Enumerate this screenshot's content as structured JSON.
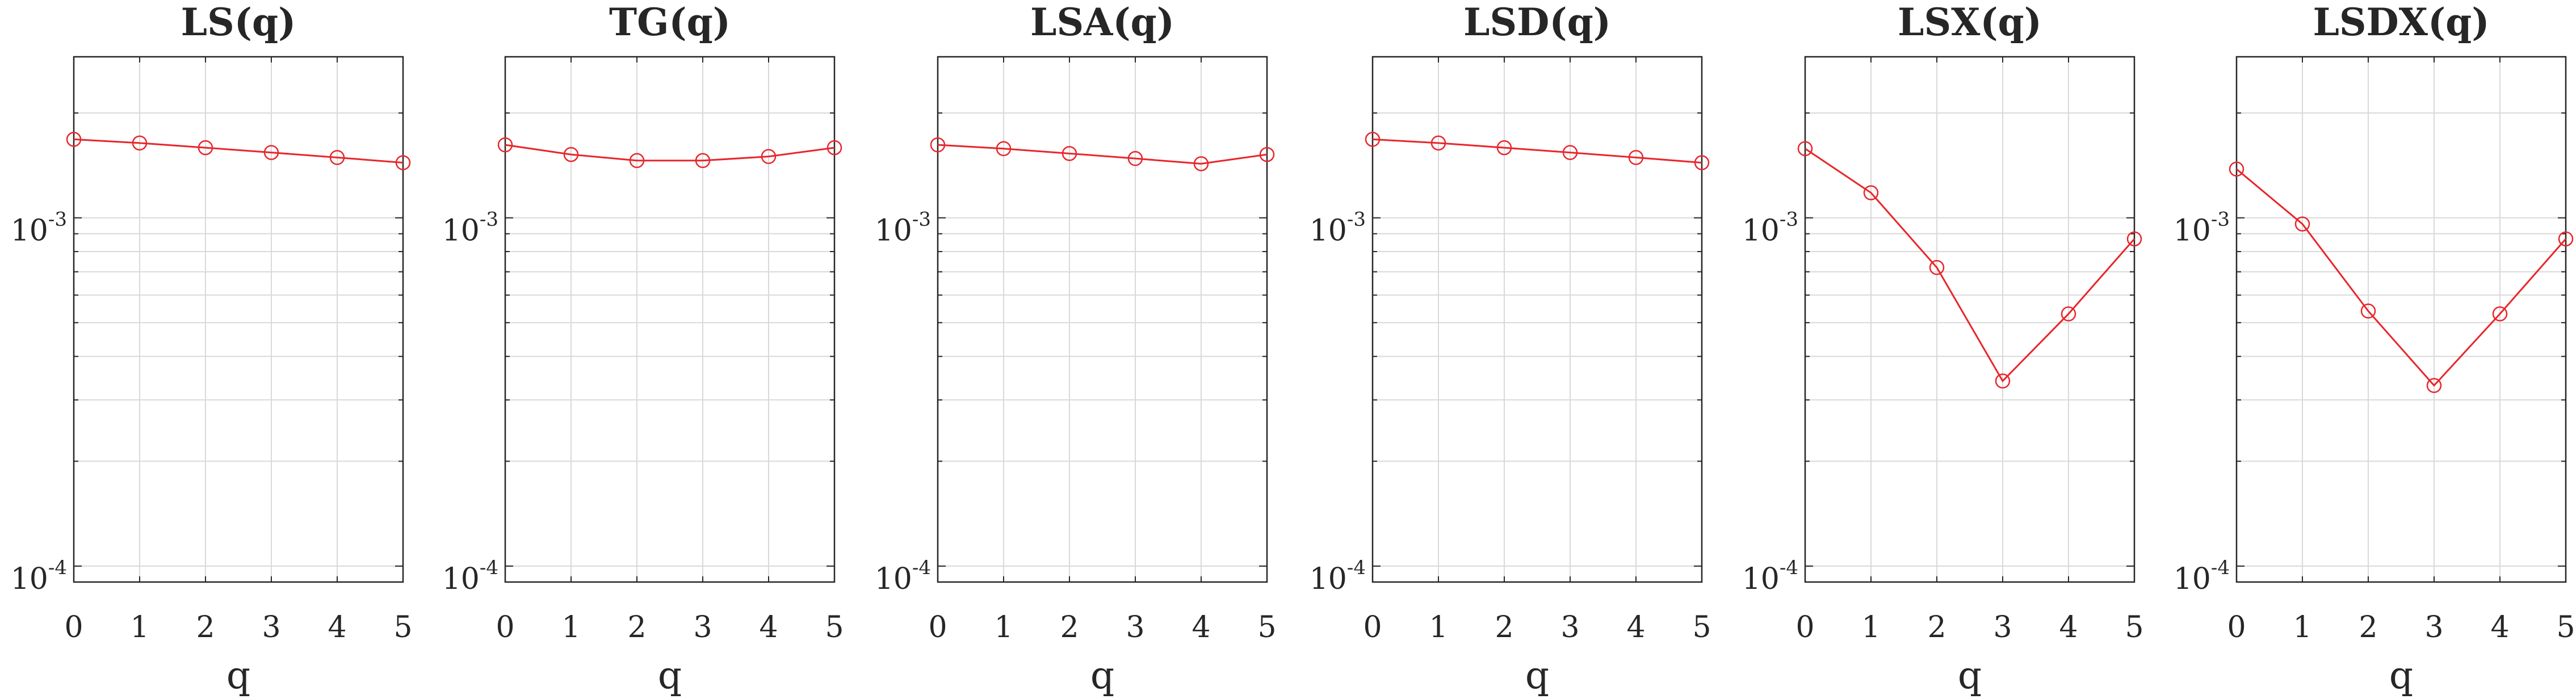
{
  "colors": {
    "series": "#e8262b",
    "grid": "#d9d9d9",
    "axis": "#262626"
  },
  "chart_data": [
    {
      "type": "line",
      "title": "LS(q)",
      "xlabel": "q",
      "ylabel": "",
      "x": [
        0,
        1,
        2,
        3,
        4,
        5
      ],
      "values": [
        0.00168,
        0.00164,
        0.00159,
        0.00154,
        0.00149,
        0.00144
      ],
      "xlim": [
        0,
        5
      ],
      "ylim": [
        9e-05,
        0.0029
      ],
      "yscale": "log",
      "xticks": [
        "0",
        "1",
        "2",
        "3",
        "4",
        "5"
      ],
      "yticks": [
        {
          "base": "10",
          "exp": "-3",
          "value": 0.001
        },
        {
          "base": "10",
          "exp": "-4",
          "value": 0.0001
        }
      ],
      "grid": true
    },
    {
      "type": "line",
      "title": "TG(q)",
      "xlabel": "q",
      "ylabel": "",
      "x": [
        0,
        1,
        2,
        3,
        4,
        5
      ],
      "values": [
        0.00162,
        0.00152,
        0.00146,
        0.00146,
        0.0015,
        0.00159
      ],
      "xlim": [
        0,
        5
      ],
      "ylim": [
        9e-05,
        0.0029
      ],
      "yscale": "log",
      "xticks": [
        "0",
        "1",
        "2",
        "3",
        "4",
        "5"
      ],
      "yticks": [
        {
          "base": "10",
          "exp": "-3",
          "value": 0.001
        },
        {
          "base": "10",
          "exp": "-4",
          "value": 0.0001
        }
      ],
      "grid": true
    },
    {
      "type": "line",
      "title": "LSA(q)",
      "xlabel": "q",
      "ylabel": "",
      "x": [
        0,
        1,
        2,
        3,
        4,
        5
      ],
      "values": [
        0.00162,
        0.00158,
        0.00153,
        0.00148,
        0.00143,
        0.00152
      ],
      "xlim": [
        0,
        5
      ],
      "ylim": [
        9e-05,
        0.0029
      ],
      "yscale": "log",
      "xticks": [
        "0",
        "1",
        "2",
        "3",
        "4",
        "5"
      ],
      "yticks": [
        {
          "base": "10",
          "exp": "-3",
          "value": 0.001
        },
        {
          "base": "10",
          "exp": "-4",
          "value": 0.0001
        }
      ],
      "grid": true
    },
    {
      "type": "line",
      "title": "LSD(q)",
      "xlabel": "q",
      "ylabel": "",
      "x": [
        0,
        1,
        2,
        3,
        4,
        5
      ],
      "values": [
        0.00168,
        0.00164,
        0.00159,
        0.00154,
        0.00149,
        0.00144
      ],
      "xlim": [
        0,
        5
      ],
      "ylim": [
        9e-05,
        0.0029
      ],
      "yscale": "log",
      "xticks": [
        "0",
        "1",
        "2",
        "3",
        "4",
        "5"
      ],
      "yticks": [
        {
          "base": "10",
          "exp": "-3",
          "value": 0.001
        },
        {
          "base": "10",
          "exp": "-4",
          "value": 0.0001
        }
      ],
      "grid": true
    },
    {
      "type": "line",
      "title": "LSX(q)",
      "xlabel": "q",
      "ylabel": "",
      "x": [
        0,
        1,
        2,
        3,
        4,
        5
      ],
      "values": [
        0.00158,
        0.00118,
        0.00072,
        0.00034,
        0.00053,
        0.00087
      ],
      "xlim": [
        0,
        5
      ],
      "ylim": [
        9e-05,
        0.0029
      ],
      "yscale": "log",
      "xticks": [
        "0",
        "1",
        "2",
        "3",
        "4",
        "5"
      ],
      "yticks": [
        {
          "base": "10",
          "exp": "-3",
          "value": 0.001
        },
        {
          "base": "10",
          "exp": "-4",
          "value": 0.0001
        }
      ],
      "grid": true
    },
    {
      "type": "line",
      "title": "LSDX(q)",
      "xlabel": "q",
      "ylabel": "",
      "x": [
        0,
        1,
        2,
        3,
        4,
        5
      ],
      "values": [
        0.00138,
        0.00096,
        0.00054,
        0.00033,
        0.00053,
        0.00087
      ],
      "xlim": [
        0,
        5
      ],
      "ylim": [
        9e-05,
        0.0029
      ],
      "yscale": "log",
      "xticks": [
        "0",
        "1",
        "2",
        "3",
        "4",
        "5"
      ],
      "yticks": [
        {
          "base": "10",
          "exp": "-3",
          "value": 0.001
        },
        {
          "base": "10",
          "exp": "-4",
          "value": 0.0001
        }
      ],
      "grid": true
    }
  ]
}
